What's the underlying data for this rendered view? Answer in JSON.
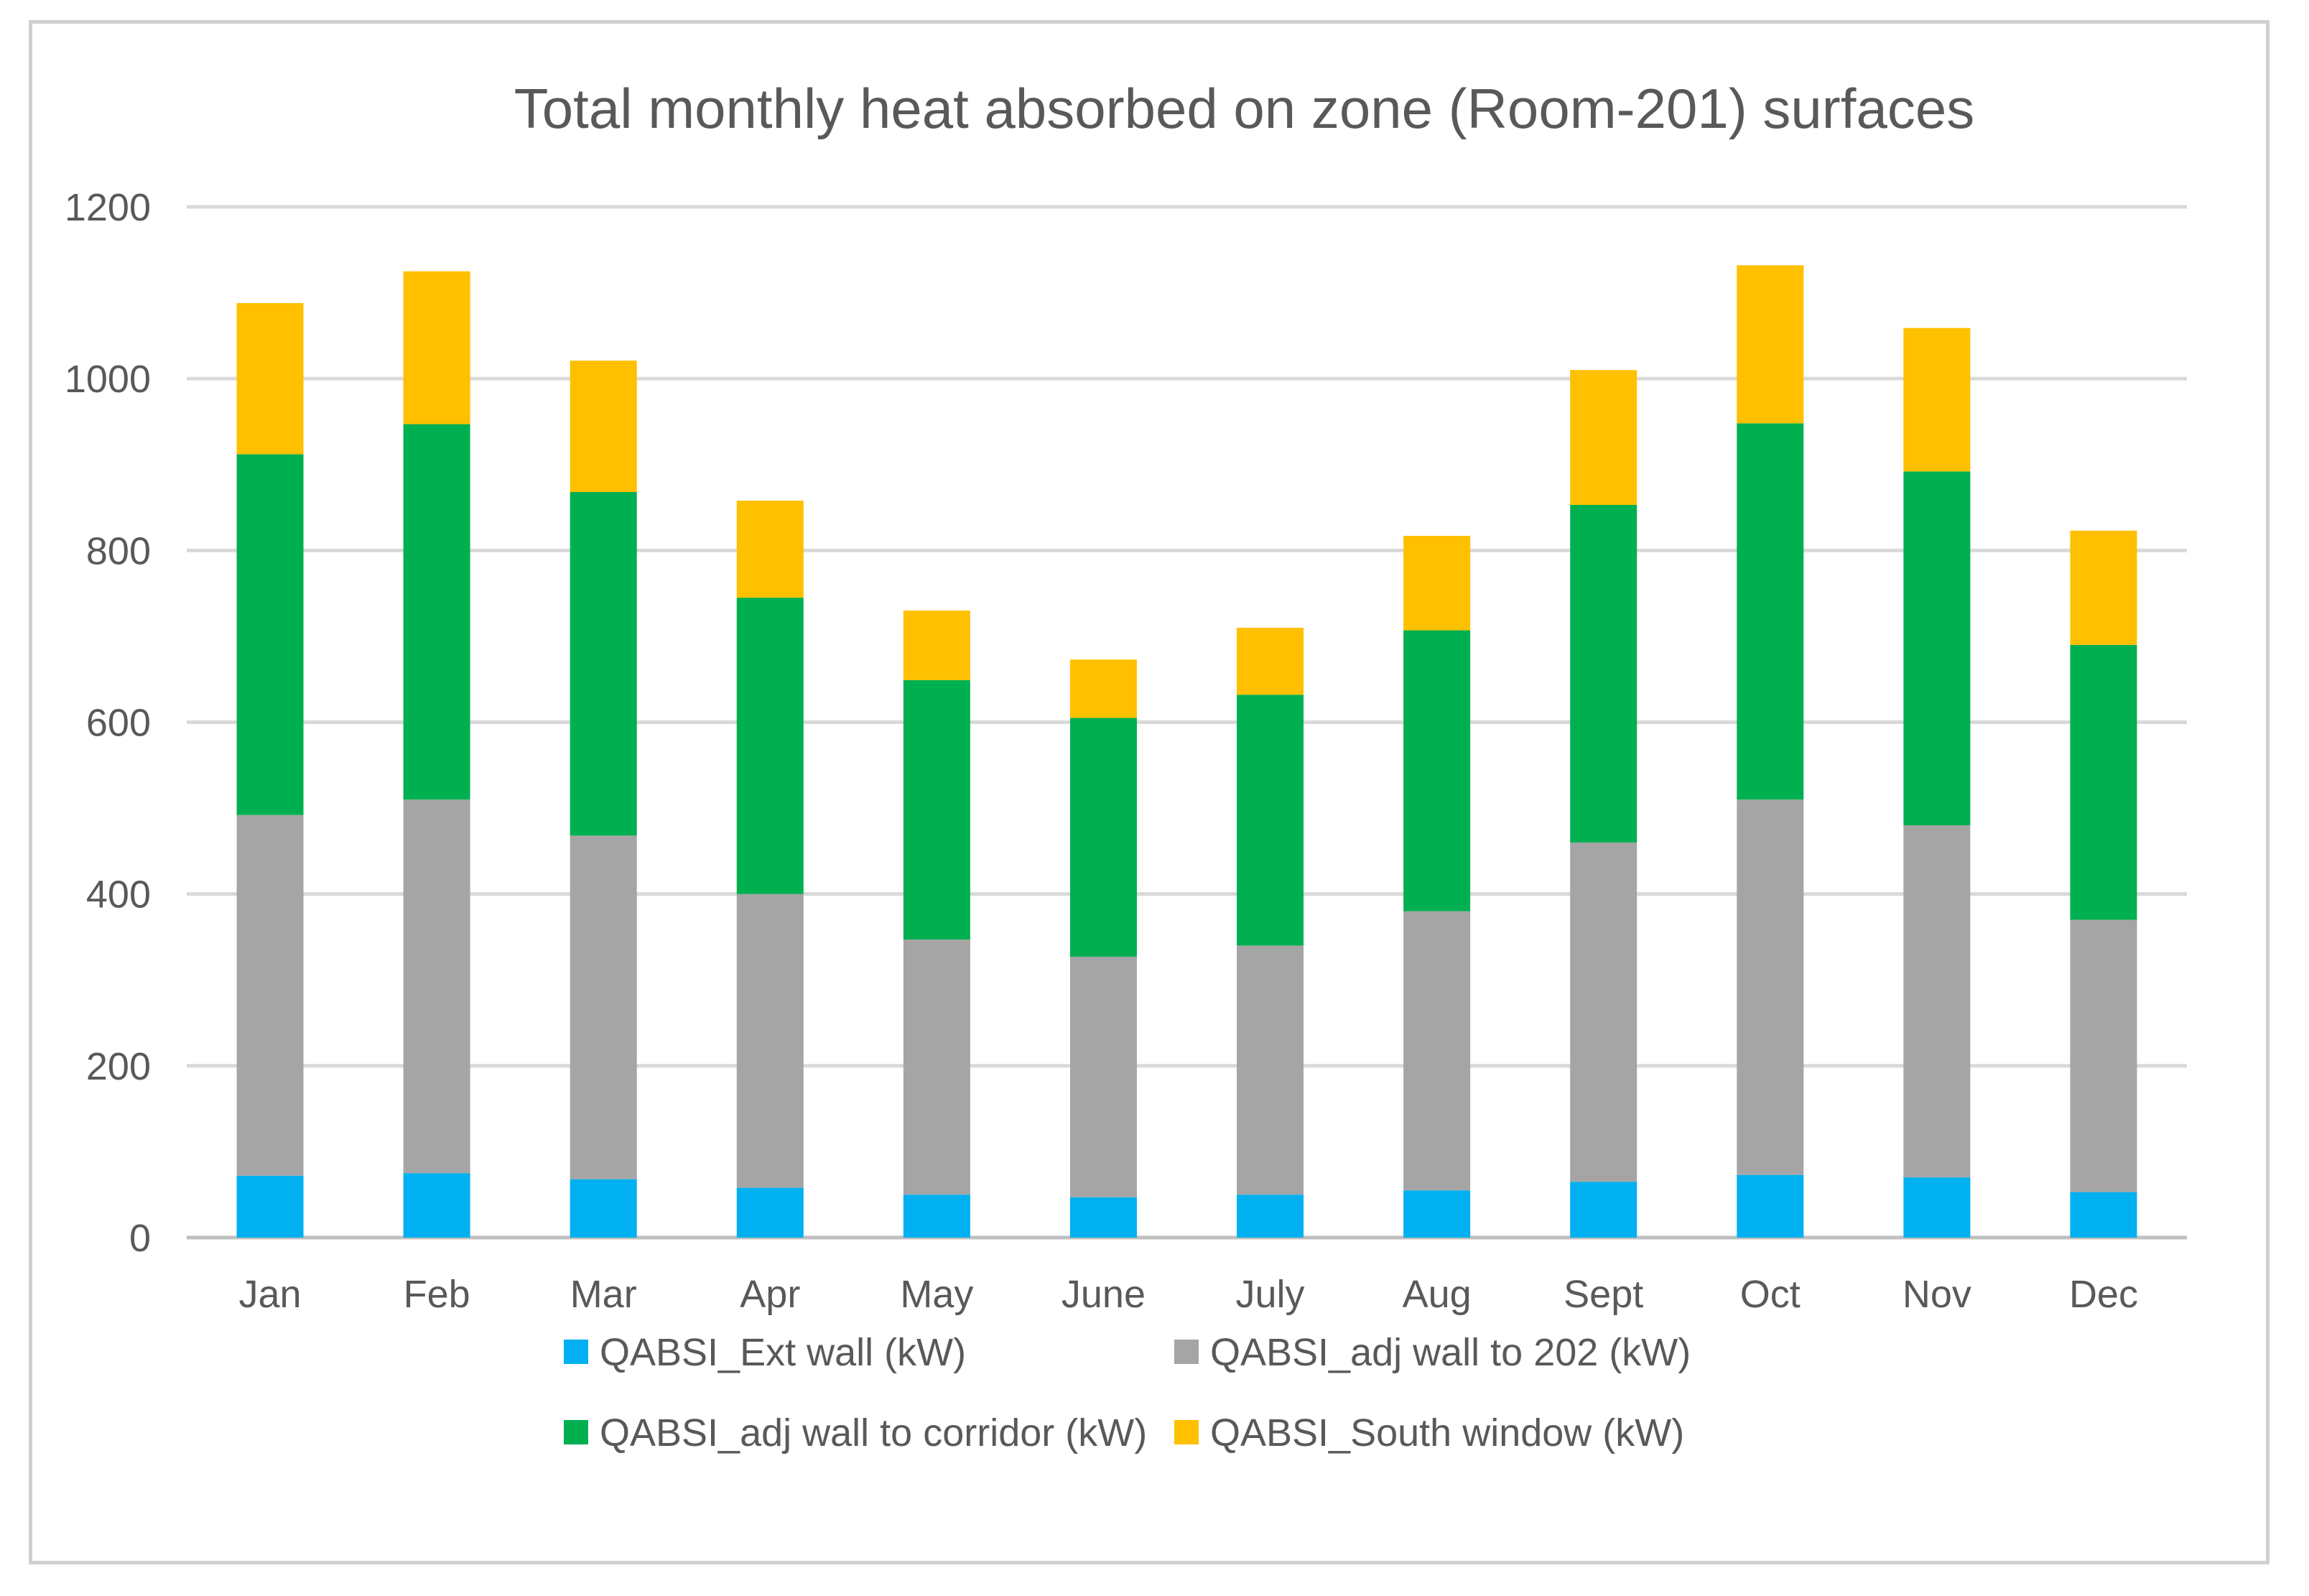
{
  "chart_data": {
    "type": "bar",
    "stacked": true,
    "title": "Total monthly heat absorbed on zone (Room-201) surfaces",
    "xlabel": "",
    "ylabel": "",
    "ylim": [
      0,
      1200
    ],
    "yticks": [
      0,
      200,
      400,
      600,
      800,
      1000,
      1200
    ],
    "grid": true,
    "legend_position": "bottom",
    "categories": [
      "Jan",
      "Feb",
      "Mar",
      "Apr",
      "May",
      "June",
      "July",
      "Aug",
      "Sept",
      "Oct",
      "Nov",
      "Dec"
    ],
    "series": [
      {
        "name": "QABSI_Ext wall (kW)",
        "color": "#00b0f0",
        "values": [
          72,
          75,
          68,
          58,
          50,
          47,
          50,
          55,
          65,
          73,
          70,
          53
        ]
      },
      {
        "name": "QABSI_adj wall to 202 (kW)",
        "color": "#a5a5a5",
        "values": [
          420,
          435,
          400,
          342,
          297,
          280,
          290,
          325,
          395,
          437,
          410,
          317
        ]
      },
      {
        "name": "QABSI_adj wall to corridor (kW)",
        "color": "#00b050",
        "values": [
          420,
          437,
          400,
          345,
          302,
          278,
          292,
          327,
          393,
          438,
          412,
          320
        ]
      },
      {
        "name": "QABSI_South window (kW)",
        "color": "#ffc000",
        "values": [
          176,
          178,
          153,
          113,
          81,
          68,
          78,
          110,
          157,
          184,
          167,
          133
        ]
      }
    ]
  }
}
